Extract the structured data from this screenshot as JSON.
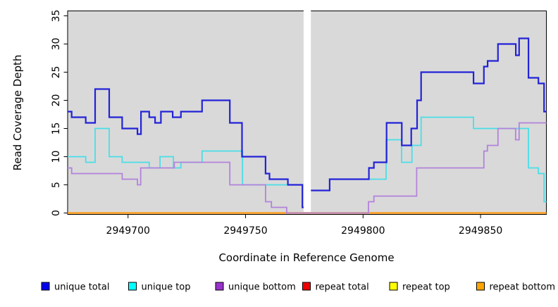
{
  "figure": {
    "background": "#ffffff",
    "panel_background": "#d9d9d9",
    "mask_band_color": "#ffffff"
  },
  "chart_data": {
    "type": "line",
    "step": "after",
    "title": "",
    "xlabel": "Coordinate in Reference Genome",
    "ylabel": "Read Coverage Depth",
    "grid": false,
    "legend_position": "bottom",
    "xlim": [
      2949674.3,
      2949878
    ],
    "ylim": [
      0,
      35.9
    ],
    "xtick_values": [
      2949700,
      2949750,
      2949800,
      2949850
    ],
    "xtick_labels": [
      "2949700",
      "2949750",
      "2949800",
      "2949850"
    ],
    "ytick_values": [
      0,
      5,
      10,
      15,
      20,
      25,
      30,
      35
    ],
    "ytick_labels": [
      "0",
      "5",
      "10",
      "15",
      "20",
      "25",
      "30",
      "35"
    ],
    "mask_region": {
      "start": 2949774.7,
      "end": 2949777.8
    },
    "series": [
      {
        "name": "repeat total",
        "color": "#DD2222",
        "width": 2,
        "points": [
          [
            2949674.3,
            0
          ]
        ]
      },
      {
        "name": "repeat top",
        "color": "#FFFF33",
        "width": 2,
        "points": [
          [
            2949674.3,
            0
          ]
        ]
      },
      {
        "name": "repeat bottom",
        "color": "#FF9D1F",
        "width": 2.4,
        "points": [
          [
            2949674.3,
            0
          ]
        ]
      },
      {
        "name": "unique top",
        "color": "#49DEE8",
        "width": 1.8,
        "points": [
          [
            2949674.3,
            10
          ],
          [
            2949682,
            9
          ],
          [
            2949686,
            15
          ],
          [
            2949692,
            10
          ],
          [
            2949697.5,
            9
          ],
          [
            2949709,
            8
          ],
          [
            2949713.6,
            10
          ],
          [
            2949719.3,
            8
          ],
          [
            2949722.5,
            9
          ],
          [
            2949731.5,
            11
          ],
          [
            2949748.7,
            5
          ],
          [
            2949774.2,
            1
          ],
          [
            2949777.4,
            4
          ],
          [
            2949785.8,
            6
          ],
          [
            2949809.8,
            13
          ],
          [
            2949816.4,
            9
          ],
          [
            2949820.8,
            12
          ],
          [
            2949824.7,
            17
          ],
          [
            2949847,
            15
          ],
          [
            2949870.4,
            8
          ],
          [
            2949874.6,
            7
          ],
          [
            2949877,
            2
          ]
        ]
      },
      {
        "name": "unique bottom",
        "color": "#B382DB",
        "width": 1.8,
        "points": [
          [
            2949674.3,
            8
          ],
          [
            2949676,
            7
          ],
          [
            2949697.5,
            6
          ],
          [
            2949704,
            5
          ],
          [
            2949705.4,
            8
          ],
          [
            2949719.7,
            9
          ],
          [
            2949743.3,
            5
          ],
          [
            2949758.5,
            2
          ],
          [
            2949761,
            1
          ],
          [
            2949767.5,
            0
          ],
          [
            2949802.3,
            2
          ],
          [
            2949804.6,
            3
          ],
          [
            2949822.8,
            8
          ],
          [
            2949851.4,
            11
          ],
          [
            2949852.9,
            12
          ],
          [
            2949857.4,
            15
          ],
          [
            2949864.9,
            13
          ],
          [
            2949866.4,
            16
          ]
        ]
      },
      {
        "name": "unique total",
        "color": "#2323D8",
        "width": 2.2,
        "points": [
          [
            2949674.3,
            18
          ],
          [
            2949676,
            17
          ],
          [
            2949682,
            16
          ],
          [
            2949686,
            22
          ],
          [
            2949692,
            17
          ],
          [
            2949697.5,
            15
          ],
          [
            2949704,
            14
          ],
          [
            2949705.5,
            18
          ],
          [
            2949709,
            17
          ],
          [
            2949711.5,
            16
          ],
          [
            2949714,
            18
          ],
          [
            2949719,
            17
          ],
          [
            2949722.5,
            18
          ],
          [
            2949731.5,
            20
          ],
          [
            2949743.3,
            16
          ],
          [
            2949748.5,
            10
          ],
          [
            2949758.5,
            7
          ],
          [
            2949760.2,
            6
          ],
          [
            2949768,
            5
          ],
          [
            2949774.2,
            1
          ],
          [
            2949777.4,
            4
          ],
          [
            2949785.8,
            6
          ],
          [
            2949802.5,
            8
          ],
          [
            2949804.6,
            9
          ],
          [
            2949810,
            16
          ],
          [
            2949816.5,
            12
          ],
          [
            2949820.5,
            15
          ],
          [
            2949823,
            20
          ],
          [
            2949824.7,
            25
          ],
          [
            2949847,
            23
          ],
          [
            2949851.4,
            26
          ],
          [
            2949853,
            27
          ],
          [
            2949857.4,
            30
          ],
          [
            2949865,
            28
          ],
          [
            2949866.4,
            31
          ],
          [
            2949870.4,
            24
          ],
          [
            2949874.6,
            23
          ],
          [
            2949877,
            18
          ]
        ]
      }
    ],
    "legend": [
      {
        "label": "unique total",
        "color": "#0000EE"
      },
      {
        "label": "unique top",
        "color": "#00FFFF"
      },
      {
        "label": "unique bottom",
        "color": "#9932CC"
      },
      {
        "label": "repeat total",
        "color": "#EE0000"
      },
      {
        "label": "repeat top",
        "color": "#FFFF00"
      },
      {
        "label": "repeat bottom",
        "color": "#FFA500"
      }
    ]
  }
}
